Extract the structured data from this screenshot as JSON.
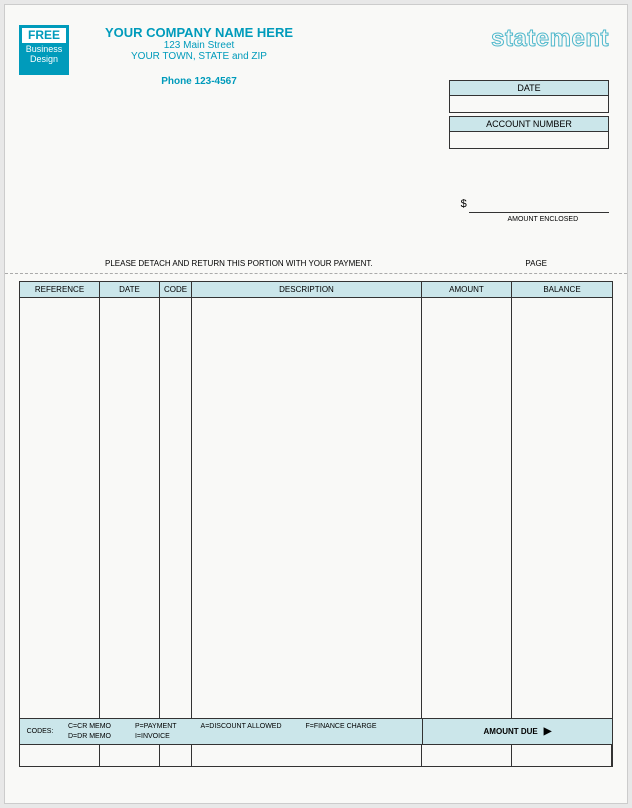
{
  "logo": {
    "free": "FREE",
    "line1": "Business",
    "line2": "Design"
  },
  "company": {
    "name": "YOUR COMPANY NAME HERE",
    "address1": "123 Main Street",
    "address2": "YOUR TOWN, STATE and ZIP",
    "phone": "Phone  123-4567"
  },
  "title": "statement",
  "info_boxes": {
    "date_label": "DATE",
    "account_label": "ACCOUNT NUMBER"
  },
  "amount_enclosed": {
    "symbol": "$",
    "label": "AMOUNT ENCLOSED"
  },
  "detach_text": "PLEASE DETACH AND RETURN THIS PORTION WITH YOUR PAYMENT.",
  "page_label": "PAGE",
  "columns": {
    "reference": "REFERENCE",
    "date": "DATE",
    "code": "CODE",
    "description": "DESCRIPTION",
    "amount": "AMOUNT",
    "balance": "BALANCE"
  },
  "codes": {
    "label": "CODES:",
    "c": "C=CR MEMO",
    "d": "D=DR MEMO",
    "p": "P=PAYMENT",
    "i": "I=INVOICE",
    "a": "A=DISCOUNT ALLOWED",
    "f": "F=FINANCE CHARGE"
  },
  "amount_due": "AMOUNT DUE",
  "colors": {
    "accent": "#009bbb",
    "header_bg": "#cbe6ea",
    "border": "#333333"
  }
}
